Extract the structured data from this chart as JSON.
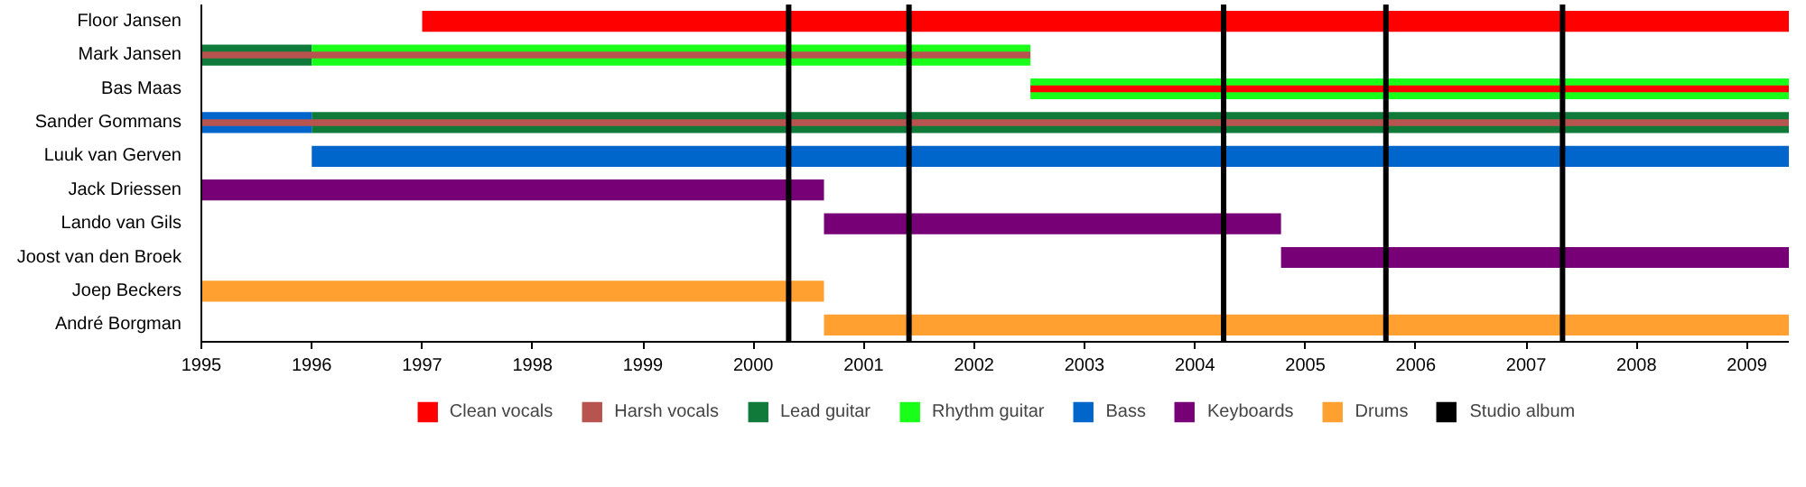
{
  "chart_data": {
    "type": "bar",
    "orientation": "horizontal",
    "categories": [
      "Floor Jansen",
      "Mark Jansen",
      "Bas Maas",
      "Sander Gommans",
      "Luuk van Gerven",
      "Jack Driessen",
      "Lando van Gils",
      "Joost van den Broek",
      "Joep Beckers",
      "André Borgman"
    ],
    "series": [
      {
        "name": "Clean vocals",
        "color": "#ff0000",
        "base": [
          1997,
          null,
          2002.51,
          null,
          null,
          null,
          null,
          null,
          null,
          null
        ],
        "values": [
          12.38,
          null,
          6.87,
          null,
          null,
          null,
          null,
          null,
          null,
          null
        ]
      },
      {
        "name": "Harsh vocals",
        "color": "#b85450",
        "base": [
          null,
          1995,
          null,
          1995,
          null,
          null,
          null,
          null,
          null,
          null
        ],
        "values": [
          null,
          7.51,
          null,
          14.38,
          null,
          null,
          null,
          null,
          null,
          null
        ]
      },
      {
        "name": "Lead guitar",
        "color": "#0f7a3a",
        "base": [
          null,
          1995,
          null,
          1996,
          null,
          null,
          null,
          null,
          null,
          null
        ],
        "values": [
          null,
          1.0,
          null,
          13.38,
          null,
          null,
          null,
          null,
          null,
          null
        ]
      },
      {
        "name": "Rhythm guitar",
        "color": "#1aff1a",
        "base": [
          null,
          1996,
          2002.51,
          null,
          null,
          null,
          null,
          null,
          null,
          null
        ],
        "values": [
          null,
          6.51,
          6.87,
          null,
          null,
          null,
          null,
          null,
          null,
          null
        ]
      },
      {
        "name": "Bass",
        "color": "#0066cc",
        "base": [
          null,
          null,
          null,
          1995,
          1996,
          null,
          null,
          null,
          null,
          null
        ],
        "values": [
          null,
          null,
          null,
          1.0,
          13.38,
          null,
          null,
          null,
          null,
          null
        ]
      },
      {
        "name": "Keyboards",
        "color": "#770077",
        "base": [
          null,
          null,
          null,
          null,
          null,
          1995,
          2000.64,
          2004.78,
          null,
          null
        ],
        "values": [
          null,
          null,
          null,
          null,
          null,
          5.64,
          4.14,
          4.6,
          null,
          null
        ]
      },
      {
        "name": "Drums",
        "color": "#ffa030",
        "base": [
          null,
          null,
          null,
          null,
          null,
          null,
          null,
          null,
          1995,
          2000.64
        ],
        "values": [
          null,
          null,
          null,
          null,
          null,
          null,
          null,
          null,
          5.64,
          8.74
        ]
      }
    ],
    "ref_lines": [
      {
        "axis": "x",
        "value": 2000.32,
        "label": "Studio album",
        "color": "#000000"
      },
      {
        "axis": "x",
        "value": 2001.41,
        "color": "#000000"
      },
      {
        "axis": "x",
        "value": 2004.26,
        "color": "#000000"
      },
      {
        "axis": "x",
        "value": 2005.73,
        "color": "#000000"
      },
      {
        "axis": "x",
        "value": 2007.33,
        "color": "#000000"
      }
    ],
    "xlim": [
      1995,
      2009.38
    ],
    "xticks": [
      1995,
      1996,
      1997,
      1998,
      1999,
      2000,
      2001,
      2002,
      2003,
      2004,
      2005,
      2006,
      2007,
      2008,
      2009
    ],
    "grid": false,
    "legend": "bottom"
  }
}
